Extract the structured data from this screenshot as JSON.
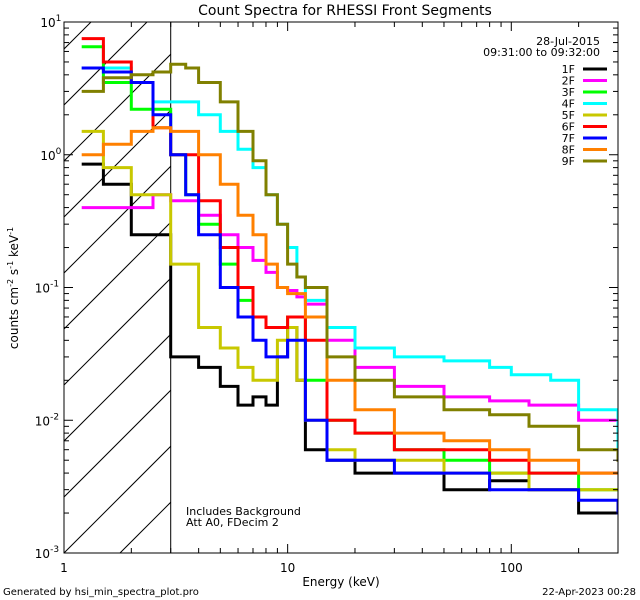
{
  "chart_data": {
    "type": "line",
    "title": "Count Spectra for RHESSI Front Segments",
    "date": "28-Jul-2015",
    "time_range": "09:31:00 to 09:32:00",
    "xlabel": "Energy (keV)",
    "ylabel_base": "counts cm",
    "ylabel_exp1": "-2",
    "ylabel_mid1": " s",
    "ylabel_exp2": "-1",
    "ylabel_mid2": " keV",
    "ylabel_exp3": "-1",
    "xscale": "log",
    "yscale": "log",
    "xlim": [
      1,
      300
    ],
    "ylim": [
      0.001,
      10
    ],
    "xticks": [
      {
        "value": 1,
        "label": "1"
      },
      {
        "value": 10,
        "label": "10"
      },
      {
        "value": 100,
        "label": "100"
      }
    ],
    "yticks": [
      {
        "value": 10,
        "base": "10",
        "exp": "1"
      },
      {
        "value": 1,
        "base": "10",
        "exp": "0"
      },
      {
        "value": 0.1,
        "base": "10",
        "exp": "-1"
      },
      {
        "value": 0.01,
        "base": "10",
        "exp": "-2"
      },
      {
        "value": 0.001,
        "base": "10",
        "exp": "-3"
      }
    ],
    "annotation_lines": [
      "Includes Background",
      "Att A0, FDecim 2"
    ],
    "hatched_region_upper_kev": 3,
    "footer_left": "Generated by hsi_min_spectra_plot.pro",
    "footer_right": "22-Apr-2023 00:28",
    "legend_position": "top-right",
    "series": [
      {
        "name": "1F",
        "color": "#000000",
        "points": [
          [
            1.2,
            0.85
          ],
          [
            1.5,
            0.6
          ],
          [
            2,
            0.25
          ],
          [
            3,
            0.03
          ],
          [
            4,
            0.025
          ],
          [
            5,
            0.018
          ],
          [
            6,
            0.013
          ],
          [
            7,
            0.015
          ],
          [
            8,
            0.013
          ],
          [
            9,
            0.03
          ],
          [
            10,
            0.05
          ],
          [
            11,
            0.02
          ],
          [
            12,
            0.006
          ],
          [
            15,
            0.005
          ],
          [
            20,
            0.004
          ],
          [
            30,
            0.004
          ],
          [
            50,
            0.003
          ],
          [
            80,
            0.0035
          ],
          [
            120,
            0.003
          ],
          [
            200,
            0.002
          ],
          [
            300,
            0.002
          ]
        ]
      },
      {
        "name": "2F",
        "color": "#ff00ff",
        "points": [
          [
            1.2,
            0.4
          ],
          [
            2,
            0.4
          ],
          [
            2.5,
            0.5
          ],
          [
            3,
            0.45
          ],
          [
            4,
            0.35
          ],
          [
            5,
            0.25
          ],
          [
            6,
            0.2
          ],
          [
            7,
            0.16
          ],
          [
            8,
            0.13
          ],
          [
            9,
            0.1
          ],
          [
            10,
            0.095
          ],
          [
            11,
            0.085
          ],
          [
            12,
            0.075
          ],
          [
            15,
            0.04
          ],
          [
            20,
            0.025
          ],
          [
            30,
            0.018
          ],
          [
            50,
            0.015
          ],
          [
            80,
            0.014
          ],
          [
            120,
            0.013
          ],
          [
            150,
            0.013
          ],
          [
            200,
            0.01
          ],
          [
            300,
            0.006
          ]
        ]
      },
      {
        "name": "3F",
        "color": "#00ff00",
        "points": [
          [
            1.2,
            6.5
          ],
          [
            1.5,
            3.5
          ],
          [
            2,
            2.2
          ],
          [
            3,
            1.0
          ],
          [
            3.5,
            0.5
          ],
          [
            4,
            0.3
          ],
          [
            5,
            0.15
          ],
          [
            6,
            0.08
          ],
          [
            7,
            0.06
          ],
          [
            8,
            0.05
          ],
          [
            10,
            0.06
          ],
          [
            12,
            0.02
          ],
          [
            15,
            0.01
          ],
          [
            20,
            0.008
          ],
          [
            30,
            0.006
          ],
          [
            50,
            0.005
          ],
          [
            80,
            0.004
          ],
          [
            120,
            0.004
          ],
          [
            200,
            0.003
          ],
          [
            300,
            0.003
          ]
        ]
      },
      {
        "name": "4F",
        "color": "#00ffff",
        "points": [
          [
            1.2,
            4.5
          ],
          [
            2,
            3.5
          ],
          [
            2.5,
            2.5
          ],
          [
            3,
            2.5
          ],
          [
            4,
            2.0
          ],
          [
            5,
            1.5
          ],
          [
            6,
            1.1
          ],
          [
            7,
            0.8
          ],
          [
            8,
            0.5
          ],
          [
            9,
            0.3
          ],
          [
            10,
            0.2
          ],
          [
            11,
            0.12
          ],
          [
            12,
            0.08
          ],
          [
            15,
            0.05
          ],
          [
            20,
            0.035
          ],
          [
            30,
            0.03
          ],
          [
            50,
            0.028
          ],
          [
            80,
            0.025
          ],
          [
            100,
            0.022
          ],
          [
            150,
            0.02
          ],
          [
            200,
            0.012
          ],
          [
            300,
            0.006
          ]
        ]
      },
      {
        "name": "5F",
        "color": "#c8c800",
        "points": [
          [
            1.2,
            1.5
          ],
          [
            1.5,
            0.8
          ],
          [
            2,
            0.5
          ],
          [
            3,
            0.15
          ],
          [
            4,
            0.05
          ],
          [
            5,
            0.035
          ],
          [
            6,
            0.025
          ],
          [
            7,
            0.02
          ],
          [
            8,
            0.02
          ],
          [
            9,
            0.04
          ],
          [
            10,
            0.05
          ],
          [
            11,
            0.02
          ],
          [
            12,
            0.01
          ],
          [
            15,
            0.006
          ],
          [
            20,
            0.005
          ],
          [
            30,
            0.005
          ],
          [
            50,
            0.004
          ],
          [
            80,
            0.004
          ],
          [
            120,
            0.003
          ],
          [
            200,
            0.003
          ],
          [
            300,
            0.003
          ]
        ]
      },
      {
        "name": "6F",
        "color": "#ff0000",
        "points": [
          [
            1.2,
            7.5
          ],
          [
            1.5,
            5
          ],
          [
            2,
            3.5
          ],
          [
            2.5,
            1.6
          ],
          [
            3,
            1.0
          ],
          [
            4,
            0.45
          ],
          [
            5,
            0.2
          ],
          [
            6,
            0.1
          ],
          [
            7,
            0.06
          ],
          [
            8,
            0.05
          ],
          [
            9,
            0.05
          ],
          [
            10,
            0.06
          ],
          [
            12,
            0.04
          ],
          [
            15,
            0.01
          ],
          [
            20,
            0.008
          ],
          [
            30,
            0.006
          ],
          [
            50,
            0.006
          ],
          [
            80,
            0.005
          ],
          [
            120,
            0.004
          ],
          [
            200,
            0.004
          ],
          [
            300,
            0.004
          ]
        ]
      },
      {
        "name": "7F",
        "color": "#0000ff",
        "points": [
          [
            1.2,
            4.5
          ],
          [
            1.5,
            4.2
          ],
          [
            2,
            3.5
          ],
          [
            2.5,
            2.0
          ],
          [
            3,
            1.0
          ],
          [
            3.5,
            0.5
          ],
          [
            4,
            0.25
          ],
          [
            5,
            0.1
          ],
          [
            6,
            0.06
          ],
          [
            7,
            0.04
          ],
          [
            8,
            0.03
          ],
          [
            10,
            0.04
          ],
          [
            12,
            0.01
          ],
          [
            15,
            0.005
          ],
          [
            20,
            0.005
          ],
          [
            30,
            0.004
          ],
          [
            50,
            0.004
          ],
          [
            80,
            0.003
          ],
          [
            120,
            0.003
          ],
          [
            200,
            0.0025
          ],
          [
            300,
            0.002
          ]
        ]
      },
      {
        "name": "8F",
        "color": "#ff8000",
        "points": [
          [
            1.2,
            1.0
          ],
          [
            1.5,
            1.2
          ],
          [
            2,
            1.5
          ],
          [
            2.5,
            1.6
          ],
          [
            3,
            1.5
          ],
          [
            4,
            1.0
          ],
          [
            5,
            0.6
          ],
          [
            6,
            0.35
          ],
          [
            7,
            0.25
          ],
          [
            8,
            0.15
          ],
          [
            9,
            0.1
          ],
          [
            10,
            0.09
          ],
          [
            12,
            0.06
          ],
          [
            15,
            0.02
          ],
          [
            20,
            0.012
          ],
          [
            30,
            0.008
          ],
          [
            50,
            0.007
          ],
          [
            80,
            0.006
          ],
          [
            120,
            0.005
          ],
          [
            200,
            0.004
          ],
          [
            300,
            0.004
          ]
        ]
      },
      {
        "name": "9F",
        "color": "#808000",
        "points": [
          [
            1.2,
            3.0
          ],
          [
            1.5,
            3.8
          ],
          [
            2,
            4.0
          ],
          [
            2.5,
            4.2
          ],
          [
            3,
            4.8
          ],
          [
            3.5,
            4.5
          ],
          [
            4,
            3.5
          ],
          [
            5,
            2.5
          ],
          [
            6,
            1.5
          ],
          [
            7,
            0.9
          ],
          [
            8,
            0.5
          ],
          [
            9,
            0.3
          ],
          [
            10,
            0.15
          ],
          [
            11,
            0.12
          ],
          [
            12,
            0.1
          ],
          [
            15,
            0.03
          ],
          [
            20,
            0.02
          ],
          [
            30,
            0.015
          ],
          [
            50,
            0.012
          ],
          [
            80,
            0.011
          ],
          [
            120,
            0.009
          ],
          [
            200,
            0.006
          ],
          [
            300,
            0.005
          ]
        ]
      }
    ]
  }
}
